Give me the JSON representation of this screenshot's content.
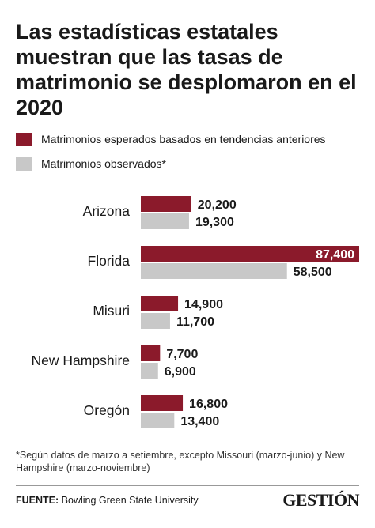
{
  "title": "Las estadísticas estatales muestran que las tasas de matrimonio se desplomaron en el 2020",
  "legend": [
    {
      "label": "Matrimonios esperados basados en tendencias anteriores",
      "color": "#8b1a2b"
    },
    {
      "label": "Matrimonios observados*",
      "color": "#c8c8c8"
    }
  ],
  "footnote": "*Según datos de marzo a setiembre, excepto Missouri (marzo-junio) y New Hampshire (marzo-noviembre)",
  "source": {
    "prefix": "FUENTE:",
    "text": "Bowling Green State University"
  },
  "brand": "GESTIÓN",
  "chart_data": {
    "type": "bar",
    "orientation": "horizontal",
    "categories": [
      "Arizona",
      "Florida",
      "Misuri",
      "New Hampshire",
      "Oregón"
    ],
    "series": [
      {
        "name": "Matrimonios esperados basados en tendencias anteriores",
        "color": "#8b1a2b",
        "values": [
          20200,
          87400,
          14900,
          7700,
          16800
        ],
        "labels": [
          "20,200",
          "87,400",
          "14,900",
          "7,700",
          "16,800"
        ]
      },
      {
        "name": "Matrimonios observados*",
        "color": "#c8c8c8",
        "values": [
          19300,
          58500,
          11700,
          6900,
          13400
        ],
        "labels": [
          "19,300",
          "58,500",
          "11,700",
          "6,900",
          "13,400"
        ]
      }
    ],
    "xlim": [
      0,
      87400
    ],
    "grid": false
  }
}
